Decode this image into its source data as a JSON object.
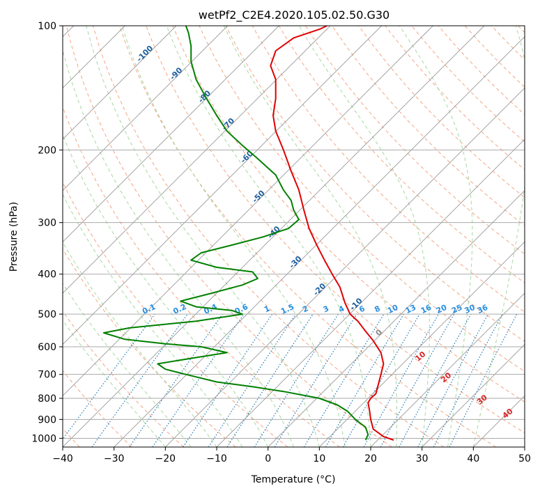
{
  "chart_data": {
    "type": "line",
    "subtype": "skew-t log-p diagram",
    "title": "wetPf2_C2E4.2020.105.02.50.G30",
    "xlabel": "Temperature (°C)",
    "ylabel": "Pressure (hPa)",
    "xlim": [
      -40,
      50
    ],
    "ylim": [
      1050,
      100
    ],
    "yscale": "log",
    "x_ticks": [
      -40,
      -30,
      -20,
      -10,
      0,
      10,
      20,
      30,
      40,
      50
    ],
    "x_tick_labels": [
      "−40",
      "−30",
      "−20",
      "−10",
      "0",
      "10",
      "20",
      "30",
      "40",
      "50"
    ],
    "y_ticks": [
      1000,
      900,
      800,
      700,
      600,
      500,
      400,
      300,
      200,
      100
    ],
    "y_tick_labels": [
      "1000",
      "900",
      "800",
      "700",
      "600",
      "500",
      "400",
      "300",
      "200",
      "100"
    ],
    "grid": true,
    "skew_note": "isotherms skewed 45 degrees",
    "colors": {
      "temperature": "#e00000",
      "dewpoint": "#008000",
      "isotherm": "#999999",
      "dry_adiabat": "#f4a582",
      "moist_adiabat": "#a6d8a0",
      "mixing_ratio": "#1f77b4",
      "isotherm_label": "#1f5fa0",
      "mixing_ratio_label": "#2a8fe0",
      "theta_label": "#d62728",
      "zero_label": "#888888"
    },
    "isotherm_labels": [
      "-100",
      "-90",
      "-80",
      "-70",
      "-60",
      "-50",
      "-40",
      "-30",
      "-20",
      "-10",
      "0"
    ],
    "isotherm_label_values": [
      -100,
      -90,
      -80,
      -70,
      -60,
      -50,
      -40,
      -30,
      -20,
      -10,
      0
    ],
    "isotherm_label_pressures": [
      118,
      132,
      150,
      175,
      210,
      262,
      320,
      378,
      440,
      478,
      560
    ],
    "mixing_ratio_labels": [
      "0.1",
      "0.2",
      "0.4",
      "0.6",
      "1",
      "1.5",
      "2",
      "3",
      "4",
      "6",
      "8",
      "10",
      "13",
      "16",
      "20",
      "25",
      "30",
      "36"
    ],
    "mixing_ratio_label_x": [
      -23,
      -17,
      -11,
      -5,
      0,
      4,
      7.5,
      11.5,
      14.5,
      18.5,
      21.5,
      24.5,
      28,
      31,
      34,
      37,
      39.5,
      42
    ],
    "theta_labels": [
      "10",
      "20",
      "30",
      "40"
    ],
    "theta_label_positions": [
      [
        30,
        640
      ],
      [
        35,
        720
      ],
      [
        42,
        815
      ],
      [
        47,
        880
      ]
    ],
    "series": [
      {
        "name": "",
        "kind": "temperature",
        "points": [
          [
            24.5,
            1010
          ],
          [
            22.5,
            990
          ],
          [
            20.5,
            950
          ],
          [
            20,
            900
          ],
          [
            19.8,
            860
          ],
          [
            19.5,
            820
          ],
          [
            20,
            800
          ],
          [
            21,
            780
          ],
          [
            21.5,
            740
          ],
          [
            22,
            700
          ],
          [
            22.5,
            660
          ],
          [
            22,
            620
          ],
          [
            20.5,
            580
          ],
          [
            19,
            550
          ],
          [
            17.5,
            520
          ],
          [
            16,
            500
          ],
          [
            15,
            470
          ],
          [
            14,
            430
          ],
          [
            12.5,
            400
          ],
          [
            11,
            370
          ],
          [
            9.5,
            340
          ],
          [
            8,
            310
          ],
          [
            7,
            280
          ],
          [
            6,
            250
          ],
          [
            4.5,
            225
          ],
          [
            3,
            200
          ],
          [
            1.5,
            180
          ],
          [
            1,
            165
          ],
          [
            1.5,
            150
          ],
          [
            1.5,
            135
          ],
          [
            0.5,
            125
          ],
          [
            1.5,
            115
          ],
          [
            5,
            107
          ],
          [
            10,
            102
          ],
          [
            11.5,
            100
          ]
        ]
      },
      {
        "name": "",
        "kind": "dewpoint",
        "points": [
          [
            19,
            1010
          ],
          [
            19.5,
            980
          ],
          [
            19,
            940
          ],
          [
            17,
            900
          ],
          [
            15.5,
            860
          ],
          [
            13.5,
            830
          ],
          [
            10,
            800
          ],
          [
            3,
            770
          ],
          [
            -3,
            750
          ],
          [
            -10,
            730
          ],
          [
            -16,
            700
          ],
          [
            -20,
            680
          ],
          [
            -21.5,
            660
          ],
          [
            -15,
            640
          ],
          [
            -8,
            620
          ],
          [
            -13,
            600
          ],
          [
            -20,
            590
          ],
          [
            -28,
            575
          ],
          [
            -32,
            555
          ],
          [
            -27,
            540
          ],
          [
            -14,
            520
          ],
          [
            -5,
            500
          ],
          [
            -7,
            490
          ],
          [
            -14,
            480
          ],
          [
            -17,
            465
          ],
          [
            -11,
            445
          ],
          [
            -5,
            425
          ],
          [
            -2,
            410
          ],
          [
            -3,
            395
          ],
          [
            -10,
            385
          ],
          [
            -15,
            370
          ],
          [
            -13,
            355
          ],
          [
            -7,
            340
          ],
          [
            -1,
            325
          ],
          [
            4,
            310
          ],
          [
            6,
            295
          ],
          [
            5,
            280
          ],
          [
            4.5,
            265
          ],
          [
            3,
            250
          ],
          [
            1.5,
            230
          ],
          [
            -2,
            210
          ],
          [
            -5,
            195
          ],
          [
            -8,
            180
          ],
          [
            -10,
            165
          ],
          [
            -12,
            150
          ],
          [
            -14,
            135
          ],
          [
            -15,
            122
          ],
          [
            -15,
            112
          ],
          [
            -15.5,
            104
          ],
          [
            -16,
            100
          ]
        ]
      }
    ]
  }
}
